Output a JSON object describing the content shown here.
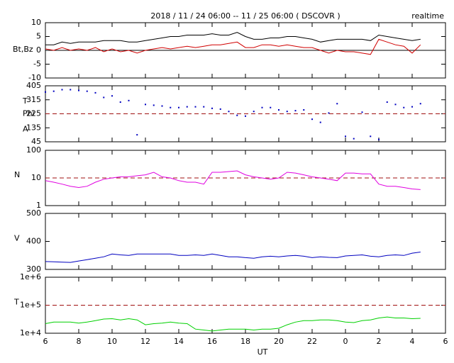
{
  "title": "2018 / 11 / 24   06:00 -- 11 / 25   06:00 ( DSCOVR )",
  "corner_label": "realtime",
  "chart_data": [
    {
      "type": "line",
      "ylabel": "Bt,Bz",
      "xlim": [
        6,
        30
      ],
      "xticks": [
        6,
        8,
        10,
        12,
        14,
        16,
        18,
        20,
        22,
        {
          "value": 24,
          "label": "0"
        },
        {
          "value": 26,
          "label": "2"
        },
        {
          "value": 28,
          "label": "4"
        },
        {
          "value": 30,
          "label": "6"
        }
      ],
      "ylim": [
        -10,
        10
      ],
      "yticks": [
        -10,
        -5,
        0,
        5,
        10
      ],
      "refline": 0,
      "refline_color": "#000000",
      "refline_dashed": false,
      "x": [
        6,
        6.5,
        7,
        7.5,
        8,
        8.5,
        9,
        9.5,
        10,
        10.5,
        11,
        11.5,
        12,
        12.5,
        13,
        13.5,
        14,
        14.5,
        15,
        15.5,
        16,
        16.5,
        17,
        17.5,
        18,
        18.5,
        19,
        19.5,
        20,
        20.5,
        21,
        21.5,
        22,
        22.5,
        23,
        23.5,
        24,
        24.5,
        25,
        25.5,
        26,
        26.5,
        27,
        27.5,
        28,
        28.5
      ],
      "series": [
        {
          "name": "Bt",
          "color": "#000000",
          "values": [
            2,
            2,
            3,
            2.5,
            3,
            3,
            3,
            3.5,
            3.5,
            3.5,
            3,
            3,
            3.5,
            4,
            4.5,
            5,
            5,
            5.5,
            5.5,
            5.5,
            6,
            5.5,
            5.5,
            6.5,
            5,
            4,
            4,
            4.5,
            4.5,
            5,
            5,
            4.5,
            4,
            3,
            3.5,
            4,
            4,
            4,
            4,
            3.5,
            5.5,
            5,
            4.5,
            4,
            3.5,
            4
          ]
        },
        {
          "name": "Bz",
          "color": "#d00000",
          "values": [
            0.5,
            0,
            1,
            0,
            0.5,
            0,
            1,
            -0.5,
            0.5,
            -0.5,
            0,
            -1,
            0,
            0.5,
            1,
            0.5,
            1,
            1.5,
            1,
            1.5,
            2,
            2,
            2.5,
            3,
            1,
            1,
            2,
            2,
            1.5,
            2,
            1.5,
            1,
            1,
            0,
            -1,
            0,
            -0.5,
            -0.5,
            -1,
            -1.5,
            4,
            3,
            2,
            1.5,
            -1,
            2
          ]
        }
      ]
    },
    {
      "type": "scatter",
      "ylabel": [
        "T",
        "Phi",
        "A"
      ],
      "xlim": [
        6,
        30
      ],
      "xticks": [
        6,
        8,
        10,
        12,
        14,
        16,
        18,
        20,
        22,
        {
          "value": 24,
          "label": "0"
        },
        {
          "value": 26,
          "label": "2"
        },
        {
          "value": 28,
          "label": "4"
        },
        {
          "value": 30,
          "label": "6"
        }
      ],
      "ylim": [
        45,
        405
      ],
      "yticks": [
        45,
        135,
        225,
        315,
        405
      ],
      "refline": 225,
      "refline_color": "#a01010",
      "refline_dashed": true,
      "x": [
        6,
        6.5,
        7,
        7.5,
        8,
        8.5,
        9,
        9.5,
        10,
        10.5,
        11,
        11.5,
        12,
        12.5,
        13,
        13.5,
        14,
        14.5,
        15,
        15.5,
        16,
        16.5,
        17,
        17.5,
        18,
        18.5,
        19,
        19.5,
        20,
        20.5,
        21,
        21.5,
        22,
        22.5,
        23,
        23.5,
        24,
        24.5,
        25,
        25.5,
        26,
        26.5,
        27,
        27.5,
        28,
        28.5
      ],
      "series": [
        {
          "name": "Phi",
          "color": "#0000c0",
          "values": [
            365,
            370,
            380,
            380,
            375,
            370,
            360,
            330,
            340,
            300,
            310,
            90,
            285,
            280,
            275,
            265,
            265,
            270,
            270,
            270,
            260,
            255,
            240,
            215,
            210,
            240,
            265,
            265,
            250,
            240,
            245,
            250,
            190,
            170,
            230,
            290,
            80,
            65,
            235,
            80,
            60,
            300,
            285,
            265,
            270,
            290
          ]
        }
      ]
    },
    {
      "type": "line",
      "ylabel": "N",
      "log": true,
      "xlim": [
        6,
        30
      ],
      "xticks": [
        6,
        8,
        10,
        12,
        14,
        16,
        18,
        20,
        22,
        {
          "value": 24,
          "label": "0"
        },
        {
          "value": 26,
          "label": "2"
        },
        {
          "value": 28,
          "label": "4"
        },
        {
          "value": 30,
          "label": "6"
        }
      ],
      "ylim": [
        1,
        100
      ],
      "yticks": [
        1,
        10,
        100
      ],
      "refline": 10,
      "refline_color": "#a01010",
      "refline_dashed": true,
      "x": [
        6,
        6.5,
        7,
        7.5,
        8,
        8.5,
        9,
        9.5,
        10,
        10.5,
        11,
        11.5,
        12,
        12.5,
        13,
        13.5,
        14,
        14.5,
        15,
        15.5,
        16,
        16.5,
        17,
        17.5,
        18,
        18.5,
        19,
        19.5,
        20,
        20.5,
        21,
        21.5,
        22,
        22.5,
        23,
        23.5,
        24,
        24.5,
        25,
        25.5,
        26,
        26.5,
        27,
        27.5,
        28,
        28.5
      ],
      "series": [
        {
          "name": "N",
          "color": "#e000e0",
          "values": [
            8,
            7,
            6,
            5,
            4.5,
            5,
            7,
            9,
            10,
            11,
            11,
            12,
            13,
            16,
            11,
            10,
            8,
            7,
            7,
            6,
            16,
            16,
            17,
            18,
            13,
            11,
            10,
            9,
            10,
            16,
            15,
            13,
            11,
            10,
            9,
            8,
            15,
            15,
            14,
            14,
            6,
            5,
            5,
            4.5,
            4,
            3.8
          ]
        }
      ]
    },
    {
      "type": "line",
      "ylabel": "V",
      "xlim": [
        6,
        30
      ],
      "xticks": [
        6,
        8,
        10,
        12,
        14,
        16,
        18,
        20,
        22,
        {
          "value": 24,
          "label": "0"
        },
        {
          "value": 26,
          "label": "2"
        },
        {
          "value": 28,
          "label": "4"
        },
        {
          "value": 30,
          "label": "6"
        }
      ],
      "ylim": [
        300,
        500
      ],
      "yticks": [
        300,
        400,
        500
      ],
      "x": [
        6,
        6.5,
        7,
        7.5,
        8,
        8.5,
        9,
        9.5,
        10,
        10.5,
        11,
        11.5,
        12,
        12.5,
        13,
        13.5,
        14,
        14.5,
        15,
        15.5,
        16,
        16.5,
        17,
        17.5,
        18,
        18.5,
        19,
        19.5,
        20,
        20.5,
        21,
        21.5,
        22,
        22.5,
        23,
        23.5,
        24,
        24.5,
        25,
        25.5,
        26,
        26.5,
        27,
        27.5,
        28,
        28.5
      ],
      "series": [
        {
          "name": "V",
          "color": "#0000c0",
          "values": [
            328,
            327,
            326,
            325,
            330,
            335,
            340,
            345,
            355,
            352,
            350,
            355,
            355,
            355,
            355,
            355,
            350,
            350,
            352,
            350,
            355,
            350,
            345,
            345,
            342,
            340,
            345,
            347,
            345,
            348,
            350,
            347,
            342,
            345,
            343,
            342,
            348,
            350,
            352,
            347,
            345,
            350,
            352,
            350,
            358,
            362
          ]
        }
      ]
    },
    {
      "type": "line",
      "ylabel": "T",
      "xlabel": "UT",
      "log": true,
      "xlim": [
        6,
        30
      ],
      "xticks": [
        6,
        8,
        10,
        12,
        14,
        16,
        18,
        20,
        22,
        {
          "value": 24,
          "label": "0"
        },
        {
          "value": 26,
          "label": "2"
        },
        {
          "value": 28,
          "label": "4"
        },
        {
          "value": 30,
          "label": "6"
        }
      ],
      "ylim": [
        10000,
        1000000
      ],
      "yticks": [
        {
          "value": 10000,
          "label": "1e+4"
        },
        {
          "value": 100000,
          "label": "1e+5"
        },
        {
          "value": 1000000,
          "label": "1e+6"
        }
      ],
      "refline": 100000,
      "refline_color": "#a01010",
      "refline_dashed": true,
      "x": [
        6,
        6.5,
        7,
        7.5,
        8,
        8.5,
        9,
        9.5,
        10,
        10.5,
        11,
        11.5,
        12,
        12.5,
        13,
        13.5,
        14,
        14.5,
        15,
        15.5,
        16,
        16.5,
        17,
        17.5,
        18,
        18.5,
        19,
        19.5,
        20,
        20.5,
        21,
        21.5,
        22,
        22.5,
        23,
        23.5,
        24,
        24.5,
        25,
        25.5,
        26,
        26.5,
        27,
        27.5,
        28,
        28.5
      ],
      "series": [
        {
          "name": "T",
          "color": "#00d000",
          "values": [
            22000,
            25000,
            25000,
            25000,
            23000,
            25000,
            28000,
            32000,
            33000,
            30000,
            33000,
            30000,
            20000,
            22000,
            23000,
            25000,
            23000,
            22000,
            14000,
            13000,
            12000,
            13000,
            14000,
            14000,
            14000,
            13000,
            14000,
            14000,
            15000,
            20000,
            25000,
            28000,
            28000,
            30000,
            30000,
            28000,
            25000,
            24000,
            28000,
            30000,
            35000,
            38000,
            35000,
            35000,
            33000,
            34000
          ]
        }
      ]
    }
  ]
}
